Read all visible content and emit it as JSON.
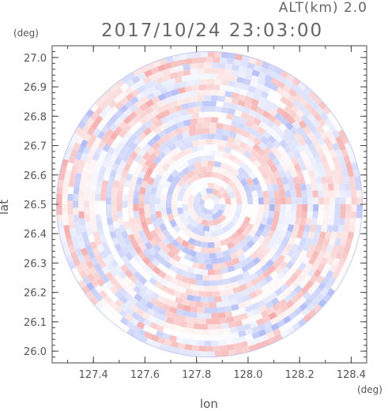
{
  "header": {
    "altitude_label": "ALT(km) 2.0",
    "datetime_label": "2017/10/24 23:03:00"
  },
  "chart_data": {
    "type": "heatmap",
    "subtype": "radar-ppi",
    "title": "2017/10/24 23:03:00",
    "subtitle": "ALT(km) 2.0",
    "xlabel": "lon",
    "ylabel": "lat",
    "x_unit": "(deg)",
    "y_unit": "(deg)",
    "xlim": [
      127.24,
      128.46
    ],
    "ylim": [
      25.96,
      27.04
    ],
    "x_ticks": [
      127.4,
      127.6,
      127.8,
      128.0,
      128.2,
      128.4
    ],
    "x_tick_labels": [
      "127.4",
      "127.6",
      "127.8",
      "128.0",
      "128.2",
      "128.4"
    ],
    "y_ticks": [
      26.0,
      26.1,
      26.2,
      26.3,
      26.4,
      26.5,
      26.6,
      26.7,
      26.8,
      26.9,
      27.0
    ],
    "y_tick_labels": [
      "26.0",
      "26.1",
      "26.2",
      "26.3",
      "26.4",
      "26.5",
      "26.6",
      "26.7",
      "26.8",
      "26.9",
      "27.0"
    ],
    "radar_center": {
      "lon": 127.85,
      "lat": 26.5
    },
    "coverage_radius_lat_deg": 0.52,
    "colormap": {
      "positive": "#f5a8a8",
      "negative": "#a8b4f5",
      "zero": "#ffffff"
    },
    "grid": false,
    "legend": "none"
  }
}
